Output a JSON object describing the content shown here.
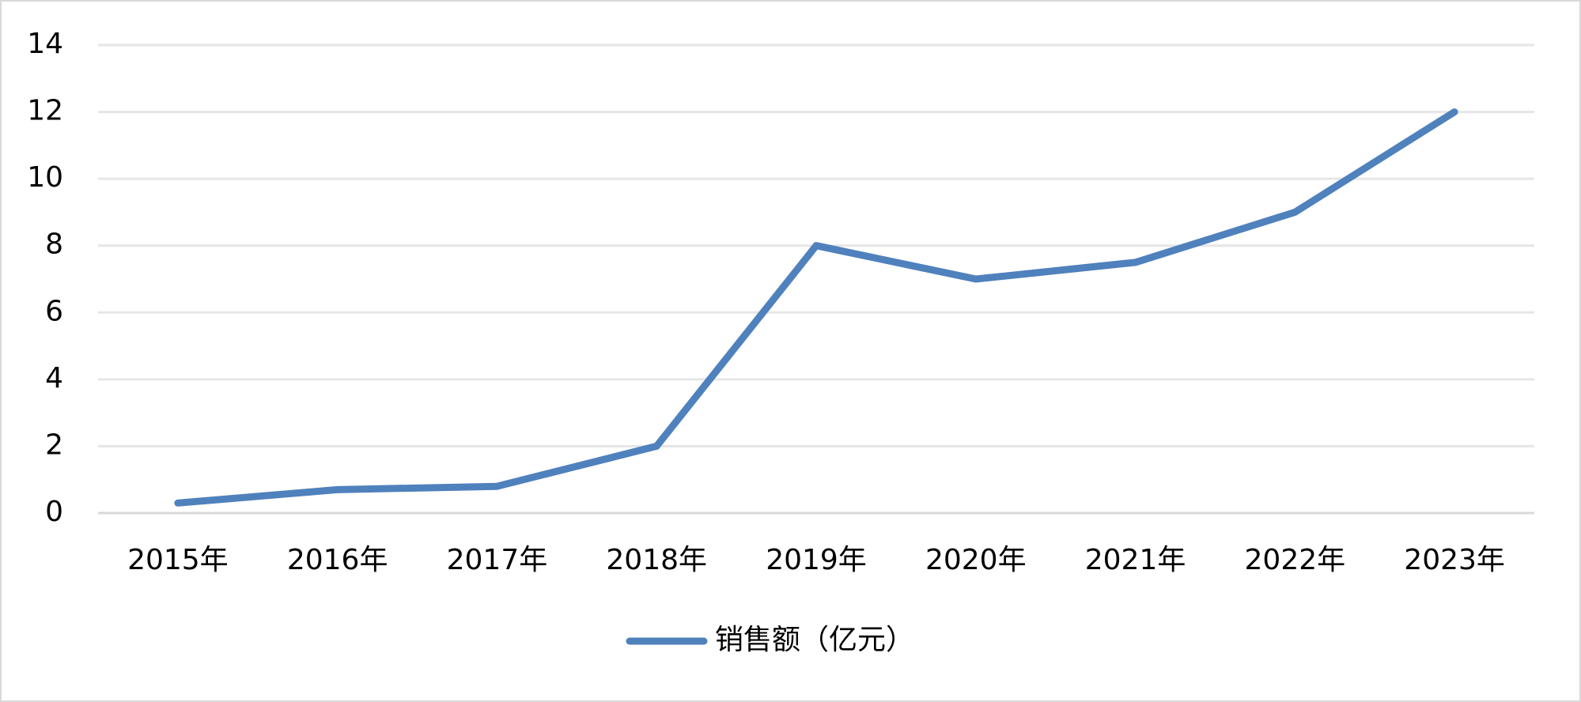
{
  "chart_data": {
    "type": "line",
    "categories": [
      "2015年",
      "2016年",
      "2017年",
      "2018年",
      "2019年",
      "2020年",
      "2021年",
      "2022年",
      "2023年"
    ],
    "series": [
      {
        "name": "销售额（亿元）",
        "color": "#4f81bd",
        "values": [
          0.3,
          0.7,
          0.8,
          2,
          8,
          7,
          7.5,
          9,
          12
        ]
      }
    ],
    "ylim": [
      0,
      14
    ],
    "yticks": [
      0,
      2,
      4,
      6,
      8,
      10,
      12,
      14
    ],
    "grid": true,
    "legend": "bottom"
  }
}
